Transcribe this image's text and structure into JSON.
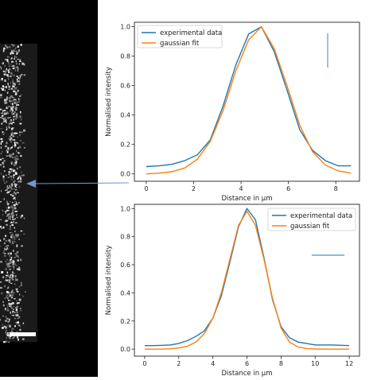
{
  "figure": {
    "scale_bar_color": "#ffffff",
    "arrow_color": "#6f96d6",
    "micro_background": "#000000"
  },
  "chart_data": [
    {
      "type": "line",
      "title": "",
      "xlabel": "Distance in µm",
      "ylabel": "Normalised intensity",
      "xlim": [
        -0.5,
        9.0
      ],
      "ylim": [
        -0.05,
        1.03
      ],
      "xticks": [
        0,
        2,
        4,
        6,
        8
      ],
      "yticks": [
        0.0,
        0.2,
        0.4,
        0.6,
        0.8,
        1.0
      ],
      "legend_position": "top-left",
      "series": [
        {
          "name": "experimental data",
          "color": "#1f77b4",
          "x": [
            0,
            0.54,
            1.08,
            1.62,
            2.16,
            2.7,
            3.24,
            3.78,
            4.32,
            4.86,
            5.4,
            5.94,
            6.48,
            7.02,
            7.56,
            8.1,
            8.64
          ],
          "y": [
            0.05,
            0.055,
            0.065,
            0.09,
            0.13,
            0.23,
            0.46,
            0.74,
            0.95,
            1.0,
            0.83,
            0.57,
            0.3,
            0.16,
            0.09,
            0.055,
            0.055
          ]
        },
        {
          "name": "gaussian fit",
          "color": "#ff7f0e",
          "x": [
            0,
            0.54,
            1.08,
            1.62,
            2.16,
            2.7,
            3.24,
            3.78,
            4.32,
            4.86,
            5.4,
            5.94,
            6.48,
            7.02,
            7.56,
            8.1,
            8.64
          ],
          "y": [
            0.0,
            0.005,
            0.015,
            0.04,
            0.1,
            0.22,
            0.43,
            0.7,
            0.91,
            1.0,
            0.85,
            0.6,
            0.33,
            0.15,
            0.06,
            0.02,
            0.005
          ]
        }
      ]
    },
    {
      "type": "line",
      "title": "",
      "xlabel": "Distance in µm",
      "ylabel": "Normalised intensity",
      "xlim": [
        -0.6,
        12.6
      ],
      "ylim": [
        -0.05,
        1.03
      ],
      "xticks": [
        0,
        2,
        4,
        6,
        8,
        10,
        12
      ],
      "yticks": [
        0.0,
        0.2,
        0.4,
        0.6,
        0.8,
        1.0
      ],
      "legend_position": "top-right",
      "series": [
        {
          "name": "experimental data",
          "color": "#1f77b4",
          "x": [
            0,
            0.5,
            1.0,
            1.5,
            2.0,
            2.5,
            3.0,
            3.5,
            4.0,
            4.5,
            5.0,
            5.5,
            6.0,
            6.5,
            7.0,
            7.5,
            8.0,
            8.5,
            9.0,
            9.5,
            10.0,
            11.0,
            12.0
          ],
          "y": [
            0.025,
            0.025,
            0.027,
            0.03,
            0.04,
            0.06,
            0.09,
            0.13,
            0.22,
            0.38,
            0.62,
            0.87,
            1.0,
            0.92,
            0.65,
            0.35,
            0.16,
            0.08,
            0.05,
            0.04,
            0.03,
            0.03,
            0.025
          ]
        },
        {
          "name": "gaussian fit",
          "color": "#ff7f0e",
          "x": [
            0,
            0.5,
            1.0,
            1.5,
            2.0,
            2.5,
            3.0,
            3.5,
            4.0,
            4.5,
            5.0,
            5.5,
            6.0,
            6.5,
            7.0,
            7.5,
            8.0,
            8.5,
            9.0,
            9.5,
            10.0,
            11.0,
            12.0
          ],
          "y": [
            0.0,
            0.0,
            0.0,
            0.002,
            0.008,
            0.02,
            0.05,
            0.11,
            0.22,
            0.4,
            0.64,
            0.88,
            0.98,
            0.88,
            0.64,
            0.36,
            0.15,
            0.05,
            0.015,
            0.004,
            0.001,
            0.0,
            0.0
          ]
        }
      ]
    }
  ]
}
